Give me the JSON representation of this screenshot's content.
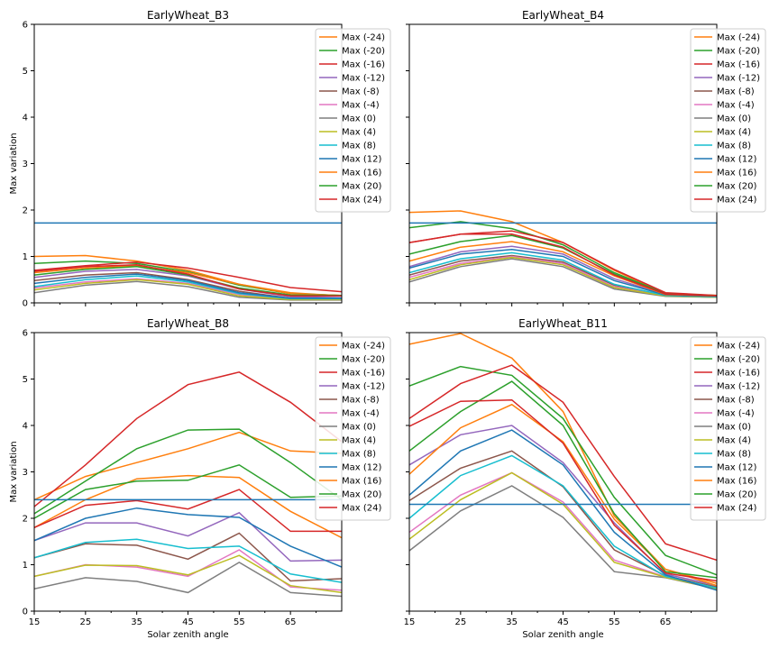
{
  "figure": {
    "ylabel": "Max variation",
    "xlabel": "Solar zenith angle"
  },
  "series_names": [
    "Max (-24)",
    "Max (-20)",
    "Max (-16)",
    "Max (-12)",
    "Max (-8)",
    "Max (-4)",
    "Max (0)",
    "Max (4)",
    "Max (8)",
    "Max (12)",
    "Max (16)",
    "Max (20)",
    "Max (24)"
  ],
  "series_colors": [
    "#ff7f0e",
    "#2ca02c",
    "#d62728",
    "#9467bd",
    "#8c564b",
    "#e377c2",
    "#7f7f7f",
    "#bcbd22",
    "#17becf",
    "#1f77b4",
    "#ff7f0e",
    "#2ca02c",
    "#d62728"
  ],
  "hline_color": "#1f77b4",
  "chart_data": [
    {
      "type": "line",
      "title": "EarlyWheat_B3",
      "x": [
        15,
        25,
        35,
        45,
        55,
        65,
        75
      ],
      "xticks": [
        15,
        25,
        35,
        45,
        55,
        65
      ],
      "xlim": [
        15,
        75
      ],
      "ylim": [
        0,
        6
      ],
      "yticks": [
        0,
        1,
        2,
        3,
        4,
        5,
        6
      ],
      "show_xticklabels": false,
      "show_yticklabels": true,
      "show_xlabel": false,
      "show_ylabel": true,
      "legend_position": "top-right",
      "hline": 1.72,
      "series": [
        {
          "name": "Max (-24)",
          "values": [
            1.0,
            1.02,
            0.9,
            0.7,
            0.4,
            0.22,
            0.15
          ]
        },
        {
          "name": "Max (-20)",
          "values": [
            0.85,
            0.9,
            0.85,
            0.67,
            0.38,
            0.2,
            0.16
          ]
        },
        {
          "name": "Max (-16)",
          "values": [
            0.7,
            0.8,
            0.88,
            0.75,
            0.55,
            0.33,
            0.24
          ]
        },
        {
          "name": "Max (-12)",
          "values": [
            0.55,
            0.68,
            0.72,
            0.58,
            0.3,
            0.13,
            0.11
          ]
        },
        {
          "name": "Max (-8)",
          "values": [
            0.48,
            0.6,
            0.65,
            0.5,
            0.25,
            0.1,
            0.1
          ]
        },
        {
          "name": "Max (-4)",
          "values": [
            0.32,
            0.45,
            0.52,
            0.42,
            0.18,
            0.08,
            0.07
          ]
        },
        {
          "name": "Max (0)",
          "values": [
            0.22,
            0.38,
            0.46,
            0.35,
            0.12,
            0.06,
            0.06
          ]
        },
        {
          "name": "Max (4)",
          "values": [
            0.28,
            0.42,
            0.5,
            0.4,
            0.15,
            0.07,
            0.07
          ]
        },
        {
          "name": "Max (8)",
          "values": [
            0.35,
            0.5,
            0.58,
            0.45,
            0.2,
            0.09,
            0.09
          ]
        },
        {
          "name": "Max (12)",
          "values": [
            0.42,
            0.55,
            0.62,
            0.48,
            0.22,
            0.1,
            0.1
          ]
        },
        {
          "name": "Max (16)",
          "values": [
            0.65,
            0.75,
            0.8,
            0.65,
            0.4,
            0.2,
            0.16
          ]
        },
        {
          "name": "Max (20)",
          "values": [
            0.6,
            0.72,
            0.78,
            0.6,
            0.32,
            0.17,
            0.16
          ]
        },
        {
          "name": "Max (24)",
          "values": [
            0.68,
            0.78,
            0.82,
            0.62,
            0.3,
            0.15,
            0.15
          ]
        }
      ]
    },
    {
      "type": "line",
      "title": "EarlyWheat_B4",
      "x": [
        15,
        25,
        35,
        45,
        55,
        65,
        75
      ],
      "xticks": [
        15,
        25,
        35,
        45,
        55,
        65
      ],
      "xlim": [
        15,
        75
      ],
      "ylim": [
        0,
        6
      ],
      "yticks": [
        0,
        1,
        2,
        3,
        4,
        5,
        6
      ],
      "show_xticklabels": false,
      "show_yticklabels": false,
      "show_xlabel": false,
      "show_ylabel": false,
      "legend_position": "top-right",
      "hline": 1.72,
      "series": [
        {
          "name": "Max (-24)",
          "values": [
            1.95,
            1.98,
            1.75,
            1.3,
            0.7,
            0.2,
            0.16
          ]
        },
        {
          "name": "Max (-20)",
          "values": [
            1.62,
            1.75,
            1.6,
            1.25,
            0.65,
            0.2,
            0.16
          ]
        },
        {
          "name": "Max (-16)",
          "values": [
            1.3,
            1.48,
            1.55,
            1.3,
            0.72,
            0.22,
            0.16
          ]
        },
        {
          "name": "Max (-12)",
          "values": [
            0.78,
            1.1,
            1.22,
            1.05,
            0.52,
            0.18,
            0.14
          ]
        },
        {
          "name": "Max (-8)",
          "values": [
            0.6,
            0.9,
            1.02,
            0.88,
            0.38,
            0.16,
            0.13
          ]
        },
        {
          "name": "Max (-4)",
          "values": [
            0.55,
            0.85,
            1.0,
            0.85,
            0.35,
            0.15,
            0.12
          ]
        },
        {
          "name": "Max (0)",
          "values": [
            0.45,
            0.78,
            0.95,
            0.78,
            0.3,
            0.14,
            0.12
          ]
        },
        {
          "name": "Max (4)",
          "values": [
            0.5,
            0.82,
            0.98,
            0.82,
            0.33,
            0.15,
            0.12
          ]
        },
        {
          "name": "Max (8)",
          "values": [
            0.65,
            0.95,
            1.08,
            0.92,
            0.4,
            0.16,
            0.13
          ]
        },
        {
          "name": "Max (12)",
          "values": [
            0.75,
            1.05,
            1.15,
            1.0,
            0.48,
            0.17,
            0.14
          ]
        },
        {
          "name": "Max (16)",
          "values": [
            0.9,
            1.2,
            1.32,
            1.1,
            0.58,
            0.18,
            0.15
          ]
        },
        {
          "name": "Max (20)",
          "values": [
            1.05,
            1.32,
            1.45,
            1.18,
            0.62,
            0.19,
            0.15
          ]
        },
        {
          "name": "Max (24)",
          "values": [
            1.3,
            1.48,
            1.48,
            1.2,
            0.6,
            0.19,
            0.15
          ]
        }
      ]
    },
    {
      "type": "line",
      "title": "EarlyWheat_B8",
      "x": [
        15,
        25,
        35,
        45,
        55,
        65,
        75
      ],
      "xticks": [
        15,
        25,
        35,
        45,
        55,
        65
      ],
      "xlim": [
        15,
        75
      ],
      "ylim": [
        0,
        6
      ],
      "yticks": [
        0,
        1,
        2,
        3,
        4,
        5,
        6
      ],
      "show_xticklabels": true,
      "show_yticklabels": true,
      "show_xlabel": true,
      "show_ylabel": true,
      "legend_position": "top-right",
      "hline": 2.4,
      "series": [
        {
          "name": "Max (-24)",
          "values": [
            2.4,
            2.9,
            3.2,
            3.5,
            3.85,
            3.45,
            3.4
          ]
        },
        {
          "name": "Max (-20)",
          "values": [
            2.1,
            2.8,
            3.5,
            3.9,
            3.92,
            3.2,
            2.4
          ]
        },
        {
          "name": "Max (-16)",
          "values": [
            2.25,
            3.15,
            4.15,
            4.88,
            5.15,
            4.5,
            3.65
          ]
        },
        {
          "name": "Max (-12)",
          "values": [
            1.52,
            1.9,
            1.9,
            1.62,
            2.12,
            1.08,
            1.1
          ]
        },
        {
          "name": "Max (-8)",
          "values": [
            1.15,
            1.45,
            1.42,
            1.12,
            1.68,
            0.65,
            0.7
          ]
        },
        {
          "name": "Max (-4)",
          "values": [
            0.75,
            1.0,
            0.95,
            0.75,
            1.32,
            0.52,
            0.45
          ]
        },
        {
          "name": "Max (0)",
          "values": [
            0.48,
            0.72,
            0.64,
            0.4,
            1.05,
            0.4,
            0.32
          ]
        },
        {
          "name": "Max (4)",
          "values": [
            0.75,
            0.99,
            0.98,
            0.78,
            1.2,
            0.55,
            0.4
          ]
        },
        {
          "name": "Max (8)",
          "values": [
            1.15,
            1.48,
            1.55,
            1.35,
            1.4,
            0.8,
            0.62
          ]
        },
        {
          "name": "Max (12)",
          "values": [
            1.52,
            2.0,
            2.22,
            2.08,
            2.02,
            1.4,
            0.95
          ]
        },
        {
          "name": "Max (16)",
          "values": [
            1.8,
            2.4,
            2.85,
            2.92,
            2.88,
            2.15,
            1.58
          ]
        },
        {
          "name": "Max (20)",
          "values": [
            2.0,
            2.62,
            2.8,
            2.82,
            3.15,
            2.45,
            2.48
          ]
        },
        {
          "name": "Max (24)",
          "values": [
            1.8,
            2.28,
            2.38,
            2.2,
            2.62,
            1.72,
            1.72
          ]
        }
      ]
    },
    {
      "type": "line",
      "title": "EarlyWheat_B11",
      "x": [
        15,
        25,
        35,
        45,
        55,
        65,
        75
      ],
      "xticks": [
        15,
        25,
        35,
        45,
        55,
        65
      ],
      "xlim": [
        15,
        75
      ],
      "ylim": [
        0,
        6
      ],
      "yticks": [
        0,
        1,
        2,
        3,
        4,
        5,
        6
      ],
      "show_xticklabels": true,
      "show_yticklabels": false,
      "show_xlabel": true,
      "show_ylabel": false,
      "legend_position": "top-right",
      "hline": 2.3,
      "series": [
        {
          "name": "Max (-24)",
          "values": [
            5.75,
            5.98,
            5.45,
            4.3,
            2.05,
            0.9,
            0.6
          ]
        },
        {
          "name": "Max (-20)",
          "values": [
            4.85,
            5.27,
            5.08,
            4.15,
            2.45,
            1.2,
            0.78
          ]
        },
        {
          "name": "Max (-16)",
          "values": [
            4.15,
            4.9,
            5.3,
            4.5,
            2.9,
            1.45,
            1.1
          ]
        },
        {
          "name": "Max (-12)",
          "values": [
            3.15,
            3.8,
            4.0,
            3.2,
            1.9,
            0.8,
            0.55
          ]
        },
        {
          "name": "Max (-8)",
          "values": [
            2.38,
            3.08,
            3.45,
            2.68,
            1.32,
            0.76,
            0.52
          ]
        },
        {
          "name": "Max (-4)",
          "values": [
            1.7,
            2.5,
            2.98,
            2.35,
            1.1,
            0.74,
            0.5
          ]
        },
        {
          "name": "Max (0)",
          "values": [
            1.3,
            2.16,
            2.7,
            2.02,
            0.85,
            0.72,
            0.48
          ]
        },
        {
          "name": "Max (4)",
          "values": [
            1.55,
            2.4,
            2.98,
            2.3,
            1.05,
            0.73,
            0.48
          ]
        },
        {
          "name": "Max (8)",
          "values": [
            2.0,
            2.92,
            3.35,
            2.7,
            1.4,
            0.75,
            0.5
          ]
        },
        {
          "name": "Max (12)",
          "values": [
            2.5,
            3.45,
            3.9,
            3.15,
            1.7,
            0.78,
            0.45
          ]
        },
        {
          "name": "Max (16)",
          "values": [
            2.95,
            3.95,
            4.45,
            3.65,
            1.98,
            0.9,
            0.55
          ]
        },
        {
          "name": "Max (20)",
          "values": [
            3.45,
            4.3,
            4.95,
            4.0,
            2.1,
            0.85,
            0.72
          ]
        },
        {
          "name": "Max (24)",
          "values": [
            3.98,
            4.52,
            4.55,
            3.62,
            1.85,
            0.82,
            0.65
          ]
        }
      ]
    }
  ]
}
